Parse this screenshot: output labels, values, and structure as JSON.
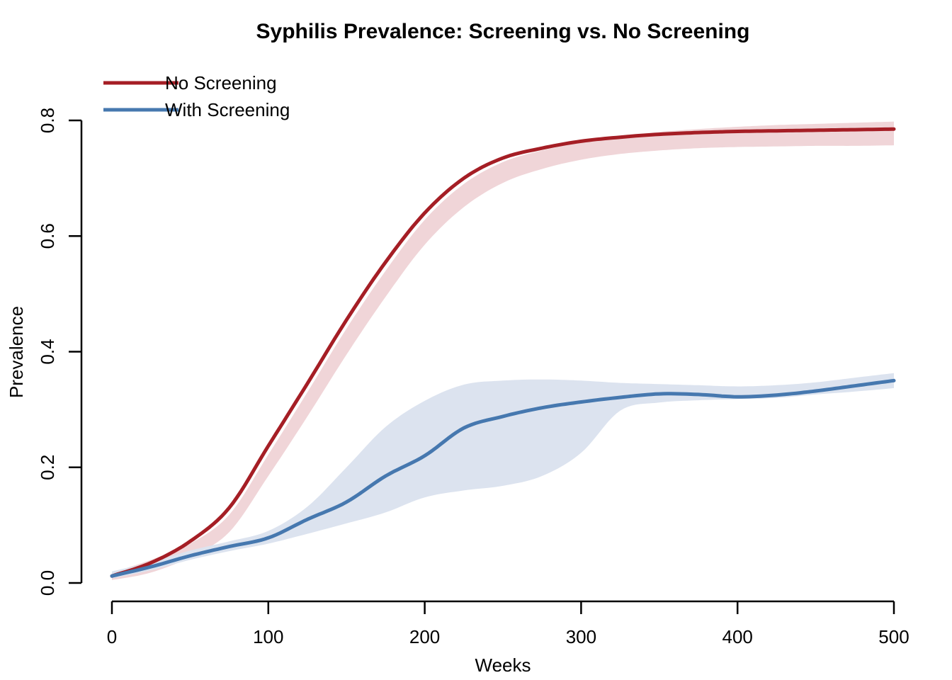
{
  "title": "Syphilis Prevalence: Screening vs. No Screening",
  "x_axis": {
    "label": "Weeks",
    "ticks": [
      0,
      100,
      200,
      300,
      400,
      500
    ],
    "range": [
      0,
      500
    ]
  },
  "y_axis": {
    "label": "Prevalence",
    "ticks": [
      "0.0",
      "0.2",
      "0.4",
      "0.6",
      "0.8"
    ],
    "range": [
      0,
      0.8
    ]
  },
  "legend": {
    "position": "top-left",
    "items": [
      {
        "label": "No Screening",
        "color": "#A51E25"
      },
      {
        "label": "With Screening",
        "color": "#4678AF"
      }
    ]
  },
  "chart_data": {
    "type": "line",
    "title": "Syphilis Prevalence: Screening vs. No Screening",
    "xlabel": "Weeks",
    "ylabel": "Prevalence",
    "xlim": [
      0,
      500
    ],
    "ylim": [
      0,
      0.8
    ],
    "grid": false,
    "legend_position": "top-left",
    "x": [
      0,
      25,
      50,
      75,
      100,
      125,
      150,
      175,
      200,
      225,
      250,
      275,
      300,
      325,
      350,
      375,
      400,
      425,
      450,
      475,
      500
    ],
    "series": [
      {
        "name": "No Screening",
        "color": "#A51E25",
        "band_color": "#F0D5D8",
        "values": [
          0.012,
          0.035,
          0.072,
          0.13,
          0.237,
          0.345,
          0.455,
          0.555,
          0.64,
          0.7,
          0.735,
          0.752,
          0.764,
          0.771,
          0.776,
          0.779,
          0.781,
          0.782,
          0.783,
          0.784,
          0.785
        ],
        "band_upper": [
          0.018,
          0.04,
          0.068,
          0.118,
          0.222,
          0.33,
          0.44,
          0.54,
          0.628,
          0.69,
          0.728,
          0.748,
          0.762,
          0.772,
          0.78,
          0.785,
          0.789,
          0.792,
          0.794,
          0.796,
          0.798
        ],
        "band_lower": [
          0.005,
          0.018,
          0.045,
          0.088,
          0.185,
          0.288,
          0.395,
          0.495,
          0.585,
          0.65,
          0.692,
          0.716,
          0.732,
          0.742,
          0.748,
          0.752,
          0.754,
          0.755,
          0.756,
          0.756,
          0.757
        ]
      },
      {
        "name": "With Screening",
        "color": "#4678AF",
        "band_color": "#DCE3EF",
        "values": [
          0.012,
          0.028,
          0.047,
          0.063,
          0.078,
          0.11,
          0.14,
          0.185,
          0.22,
          0.268,
          0.288,
          0.303,
          0.313,
          0.321,
          0.327,
          0.326,
          0.322,
          0.325,
          0.332,
          0.341,
          0.35
        ],
        "band_upper": [
          0.02,
          0.036,
          0.056,
          0.072,
          0.09,
          0.132,
          0.2,
          0.27,
          0.315,
          0.343,
          0.35,
          0.352,
          0.35,
          0.346,
          0.344,
          0.342,
          0.34,
          0.342,
          0.347,
          0.355,
          0.363
        ],
        "band_lower": [
          0.008,
          0.022,
          0.04,
          0.055,
          0.068,
          0.085,
          0.103,
          0.122,
          0.148,
          0.16,
          0.168,
          0.185,
          0.225,
          0.298,
          0.312,
          0.316,
          0.318,
          0.32,
          0.326,
          0.331,
          0.337
        ]
      }
    ]
  }
}
